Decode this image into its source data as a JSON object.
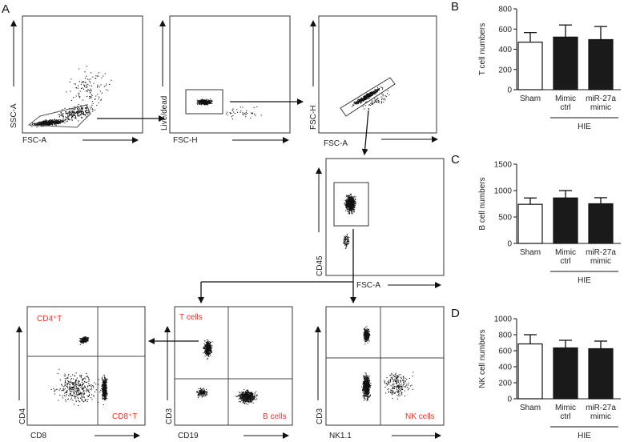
{
  "panel_letters": {
    "a": "A",
    "b": "B",
    "c": "C",
    "d": "D"
  },
  "flow": {
    "plot1": {
      "ylabel": "SSC-A",
      "xlabel": "FSC-A"
    },
    "plot2": {
      "ylabel": "Live/dead",
      "xlabel": "FSC-H"
    },
    "plot3": {
      "ylabel": "FSC-H",
      "xlabel": "FSC-A"
    },
    "plot4": {
      "ylabel": "CD45",
      "xlabel": "FSC-A"
    },
    "plot5": {
      "ylabel": "CD4",
      "xlabel": "CD8",
      "gate_tl": "CD4⁺T",
      "gate_br": "CD8⁺T"
    },
    "plot6": {
      "ylabel": "CD3",
      "xlabel": "CD19",
      "gate_tl": "T cells",
      "gate_br": "B cells"
    },
    "plot7": {
      "ylabel": "CD3",
      "xlabel": "NK1.1",
      "gate_br": "NK cells"
    }
  },
  "colors": {
    "hollow_bar": "#ffffff",
    "filled_bar": "#1a1a1a",
    "gate_label": "#e8322b"
  },
  "chart_data": [
    {
      "type": "bar",
      "ylabel": "T cell numbers",
      "categories": [
        "Sham",
        "Mimic\nctrl",
        "miR-27a\nmimic"
      ],
      "values": [
        470,
        520,
        495
      ],
      "errors": [
        95,
        120,
        130
      ],
      "ylim": [
        0,
        800
      ],
      "ticks": [
        0,
        200,
        400,
        600,
        800
      ],
      "group_label": "HIE"
    },
    {
      "type": "bar",
      "ylabel": "B cell numbers",
      "categories": [
        "Sham",
        "Mimic\nctrl",
        "miR-27a\nmimic"
      ],
      "values": [
        740,
        860,
        750
      ],
      "errors": [
        120,
        140,
        115
      ],
      "ylim": [
        0,
        1500
      ],
      "ticks": [
        0,
        500,
        1000,
        1500
      ],
      "group_label": "HIE"
    },
    {
      "type": "bar",
      "ylabel": "NK cell numbers",
      "categories": [
        "Sham",
        "Mimic\nctrl",
        "miR-27a\nmimic"
      ],
      "values": [
        685,
        635,
        625
      ],
      "errors": [
        115,
        95,
        95
      ],
      "ylim": [
        0,
        1000
      ],
      "ticks": [
        0,
        200,
        400,
        600,
        800,
        1000
      ],
      "group_label": "HIE"
    }
  ]
}
